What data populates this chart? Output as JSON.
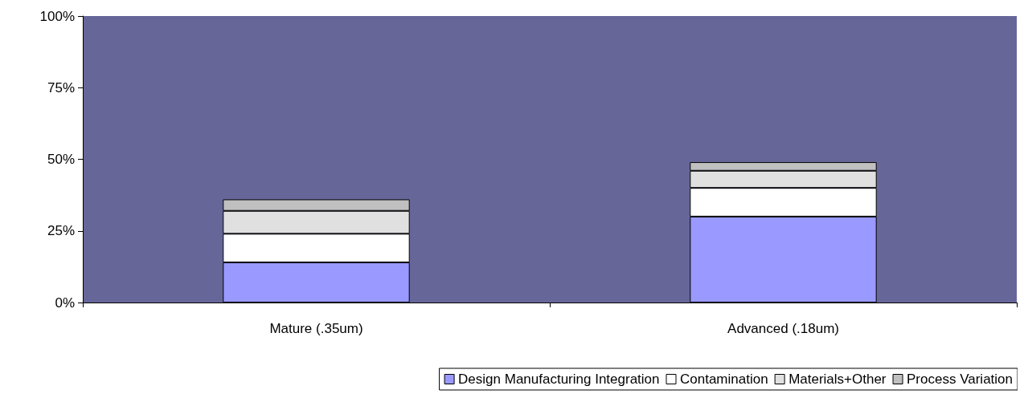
{
  "chart_data": {
    "type": "bar",
    "stacked": true,
    "categories": [
      "Mature (.35um)",
      "Advanced (.18um)"
    ],
    "series": [
      {
        "name": "Design Manufacturing Integration",
        "color": "#9999ff",
        "values": [
          14,
          30
        ]
      },
      {
        "name": "Contamination",
        "color": "#ffffff",
        "values": [
          10,
          10
        ]
      },
      {
        "name": "Materials+Other",
        "color": "#e0e0e0",
        "values": [
          8,
          6
        ]
      },
      {
        "name": "Process Variation",
        "color": "#c0c0c0",
        "values": [
          4,
          3
        ]
      }
    ],
    "ylim": [
      0,
      100
    ],
    "yticks": [
      {
        "value": 0,
        "label": "0%"
      },
      {
        "value": 25,
        "label": "25%"
      },
      {
        "value": 50,
        "label": "50%"
      },
      {
        "value": 75,
        "label": "75%"
      },
      {
        "value": 100,
        "label": "100%"
      }
    ],
    "grid": false,
    "legend": "bottom"
  }
}
